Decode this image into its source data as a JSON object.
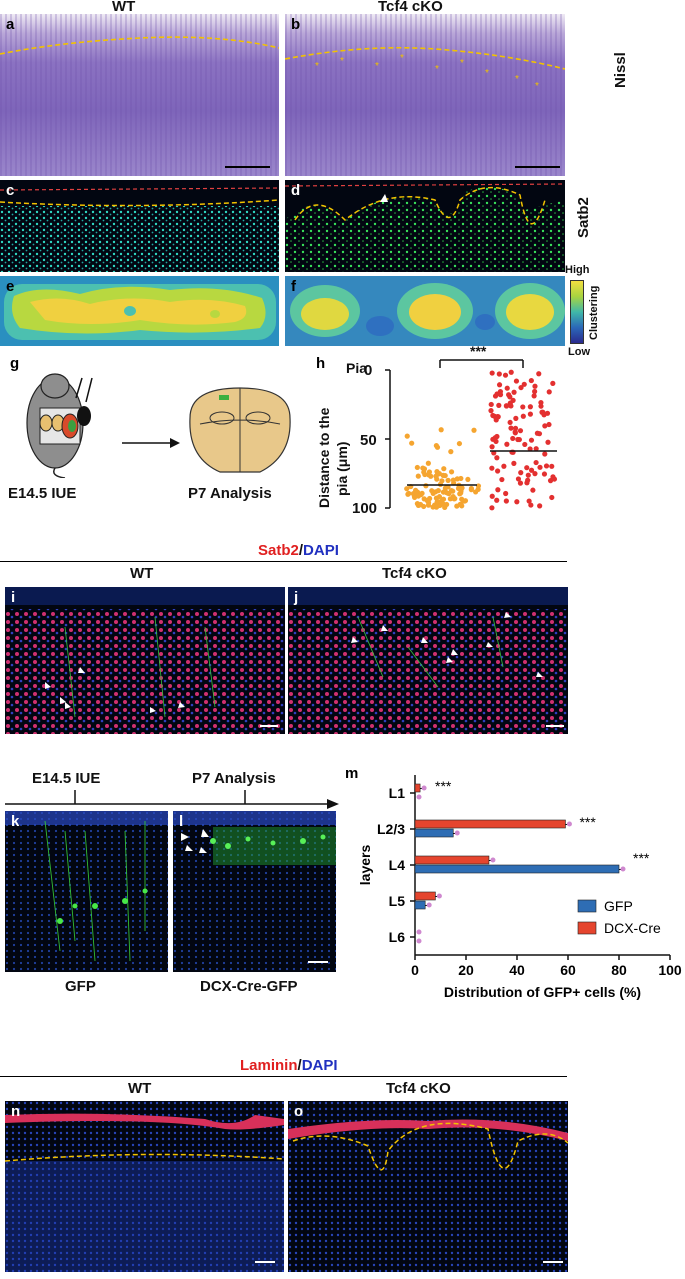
{
  "top": {
    "col_wt": "WT",
    "col_cko": "Tcf4 cKO",
    "row_nissl": "Nissl",
    "row_satb2": "Satb2",
    "heat_high": "High",
    "heat_low": "Low",
    "heat_label": "Clustering",
    "panels": {
      "a": "a",
      "b": "b",
      "c": "c",
      "d": "d",
      "e": "e",
      "f": "f",
      "g": "g",
      "h": "h"
    }
  },
  "g": {
    "iue": "E14.5 IUE",
    "analysis": "P7 Analysis"
  },
  "h": {
    "pia": "Pia",
    "ylabel_1": "Distance to the",
    "ylabel_2": "pia (μm)",
    "sig": "***",
    "yticks": [
      "0",
      "50",
      "100"
    ]
  },
  "satb2": {
    "title_red": "Satb2",
    "title_sep": "/",
    "title_blue": "DAPI",
    "wt": "WT",
    "cko": "Tcf4 cKO",
    "panels": {
      "i": "i",
      "j": "j"
    }
  },
  "mid": {
    "iue": "E14.5 IUE",
    "analysis": "P7 Analysis",
    "gfp": "GFP",
    "dcx": "DCX-Cre-GFP",
    "panels": {
      "k": "k",
      "l": "l",
      "m": "m"
    }
  },
  "chart_data": {
    "type": "bar",
    "orientation": "horizontal",
    "categories": [
      "L1",
      "L2/3",
      "L4",
      "L5",
      "L6"
    ],
    "series": [
      {
        "name": "GFP",
        "color": "#2e6db4",
        "values": [
          0,
          15,
          80,
          4,
          0
        ]
      },
      {
        "name": "DCX-Cre",
        "color": "#e5452e",
        "values": [
          2,
          59,
          29,
          8,
          0
        ]
      }
    ],
    "annotations": [
      "***",
      "***",
      "***"
    ],
    "xlabel": "Distribution of GFP+ cells (%)",
    "ylabel": "layers",
    "xticks": [
      "0",
      "20",
      "40",
      "60",
      "80",
      "100"
    ],
    "xlim": [
      0,
      100
    ],
    "legend": "bottom-right"
  },
  "laminin": {
    "title_red": "Laminin",
    "title_sep": "/",
    "title_blue": "DAPI",
    "wt": "WT",
    "cko": "Tcf4 cKO",
    "panels": {
      "n": "n",
      "o": "o"
    }
  }
}
